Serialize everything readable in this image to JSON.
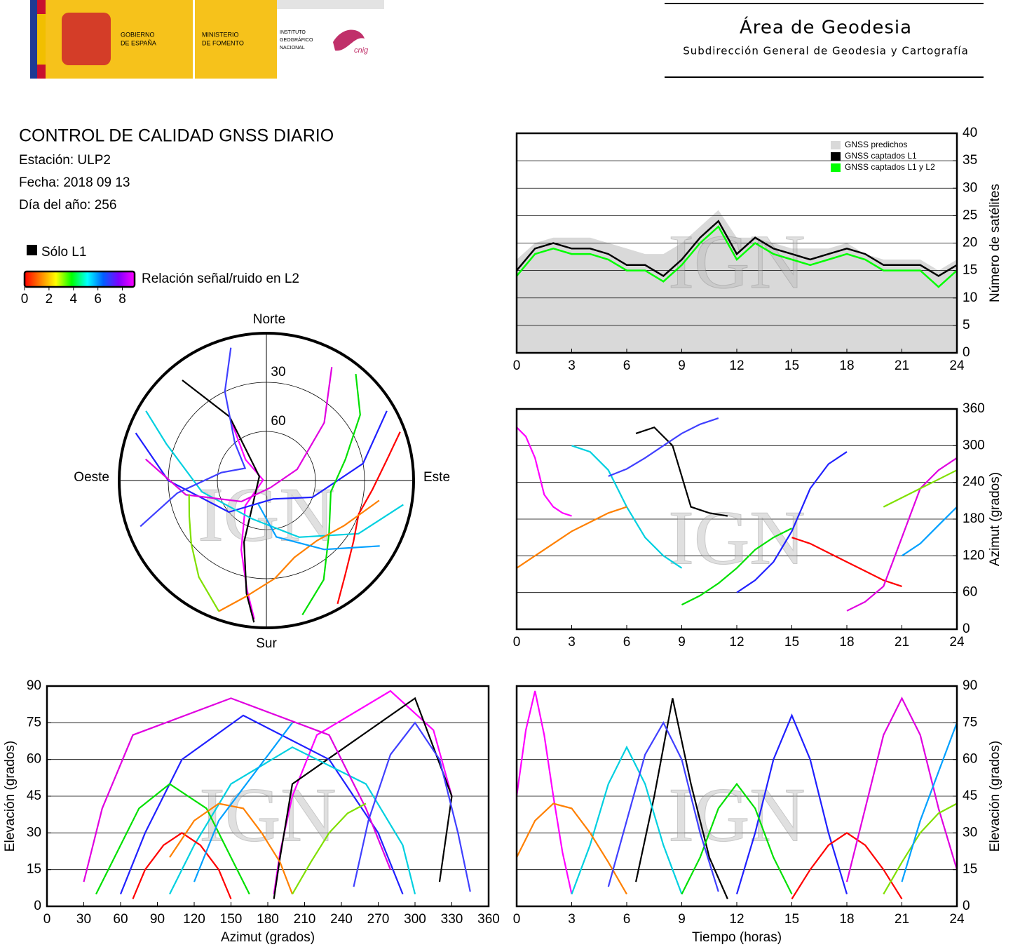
{
  "header": {
    "gov": [
      "GOBIERNO",
      "DE ESPAÑA"
    ],
    "ministry": [
      "MINISTERIO",
      "DE FOMENTO"
    ],
    "institute": [
      "INSTITUTO",
      "GEOGRÁFICO",
      "NACIONAL"
    ],
    "cnig": "cnig",
    "area": "Área de Geodesia",
    "subdirection": "Subdirección General de Geodesia y Cartografía"
  },
  "report": {
    "title": "CONTROL DE CALIDAD GNSS DIARIO",
    "station": "Estación: ULP2",
    "date": "Fecha: 2018 09 13",
    "doy": "Día del año: 256",
    "l1_only": "Sólo L1",
    "l1_color": "#000000",
    "colorbar": {
      "label": "Relación señal/ruido en L2",
      "lim": [
        0,
        9
      ],
      "ticks": [
        0,
        2,
        4,
        6,
        8
      ],
      "colors": [
        "#ff0000",
        "#ff8000",
        "#ffff00",
        "#00ff00",
        "#00ffff",
        "#0060ff",
        "#8000ff",
        "#ff00ff"
      ]
    }
  },
  "watermark": "IGN",
  "tracks": [
    {
      "color": "#ff00ff",
      "time": [
        0,
        0.5,
        1,
        1.5,
        2,
        2.5,
        3
      ],
      "azimuth": [
        330,
        315,
        280,
        220,
        200,
        190,
        185
      ],
      "elevation": [
        45,
        72,
        88,
        70,
        45,
        22,
        5
      ]
    },
    {
      "color": "#000000",
      "time": [
        6.5,
        7.5,
        8.5,
        9.5,
        10.5,
        11.5
      ],
      "azimuth": [
        320,
        330,
        300,
        200,
        190,
        185
      ],
      "elevation": [
        10,
        45,
        85,
        50,
        20,
        3
      ]
    },
    {
      "color": "#2020ff",
      "time": [
        12,
        13,
        14,
        15,
        16,
        17,
        18
      ],
      "azimuth": [
        60,
        80,
        110,
        160,
        230,
        270,
        290
      ],
      "elevation": [
        5,
        30,
        60,
        78,
        60,
        30,
        5
      ]
    },
    {
      "color": "#00d0e0",
      "time": [
        3,
        4,
        5,
        6,
        7,
        8,
        9
      ],
      "azimuth": [
        300,
        290,
        260,
        200,
        150,
        120,
        100
      ],
      "elevation": [
        5,
        25,
        50,
        65,
        50,
        25,
        5
      ]
    },
    {
      "color": "#ff0000",
      "time": [
        15,
        16,
        17,
        18,
        19,
        20,
        21
      ],
      "azimuth": [
        150,
        140,
        125,
        110,
        95,
        80,
        70
      ],
      "elevation": [
        3,
        15,
        25,
        30,
        25,
        15,
        3
      ]
    },
    {
      "color": "#00e000",
      "time": [
        9,
        10,
        11,
        12,
        13,
        14,
        15
      ],
      "azimuth": [
        40,
        55,
        75,
        100,
        130,
        150,
        165
      ],
      "elevation": [
        5,
        20,
        40,
        50,
        40,
        20,
        5
      ]
    },
    {
      "color": "#e000e0",
      "time": [
        18,
        19,
        20,
        21,
        22,
        23,
        24
      ],
      "azimuth": [
        30,
        45,
        70,
        150,
        230,
        260,
        280
      ],
      "elevation": [
        10,
        40,
        70,
        85,
        70,
        40,
        15
      ]
    },
    {
      "color": "#ff8000",
      "time": [
        0,
        1,
        2,
        3,
        4,
        5,
        6
      ],
      "azimuth": [
        100,
        120,
        140,
        160,
        175,
        190,
        200
      ],
      "elevation": [
        20,
        35,
        42,
        40,
        30,
        18,
        5
      ]
    },
    {
      "color": "#80e000",
      "time": [
        20,
        21,
        22,
        23,
        24
      ],
      "azimuth": [
        200,
        215,
        230,
        245,
        260
      ],
      "elevation": [
        5,
        18,
        30,
        38,
        42
      ]
    },
    {
      "color": "#4040ff",
      "time": [
        5,
        6,
        7,
        8,
        9,
        10,
        11
      ],
      "azimuth": [
        250,
        262,
        280,
        300,
        320,
        335,
        345
      ],
      "elevation": [
        8,
        35,
        62,
        75,
        60,
        30,
        6
      ]
    },
    {
      "color": "#00a0ff",
      "time": [
        21,
        22,
        23,
        24
      ],
      "azimuth": [
        120,
        140,
        170,
        200
      ],
      "elevation": [
        10,
        35,
        55,
        75
      ]
    }
  ],
  "chart_data": [
    {
      "type": "line",
      "x": [
        0,
        1,
        2,
        3,
        4,
        5,
        6,
        7,
        8,
        9,
        10,
        11,
        12,
        13,
        14,
        15,
        16,
        17,
        18,
        19,
        20,
        21,
        22,
        23,
        24
      ],
      "series": [
        {
          "name": "GNSS predichos",
          "color": "#d9d9d9",
          "style": "area",
          "values": [
            17,
            20,
            21,
            21,
            21,
            20,
            19,
            18,
            18,
            20,
            23,
            26,
            21,
            21,
            20,
            19,
            19,
            19,
            20,
            18,
            17,
            17,
            17,
            15,
            17
          ]
        },
        {
          "name": "GNSS captados L1",
          "color": "#000000",
          "style": "line",
          "values": [
            15,
            19,
            20,
            19,
            19,
            18,
            16,
            16,
            14,
            17,
            21,
            24,
            18,
            21,
            19,
            18,
            17,
            18,
            19,
            18,
            16,
            16,
            16,
            14,
            16
          ]
        },
        {
          "name": "GNSS captados L1 y L2",
          "color": "#00ff00",
          "style": "line",
          "values": [
            14,
            18,
            19,
            18,
            18,
            17,
            15,
            15,
            13,
            16,
            20,
            23,
            17,
            20,
            18,
            17,
            16,
            17,
            18,
            17,
            15,
            15,
            15,
            12,
            15
          ]
        }
      ],
      "xlim": [
        0,
        24
      ],
      "xticks": [
        0,
        3,
        6,
        9,
        12,
        15,
        18,
        21,
        24
      ],
      "ylim": [
        0,
        40
      ],
      "yticks": [
        0,
        5,
        10,
        15,
        20,
        25,
        30,
        35,
        40
      ],
      "ylabel": "Número de satélites",
      "grid": true,
      "legend": "upper right"
    },
    {
      "type": "azimuth-time",
      "xlim": [
        0,
        24
      ],
      "xticks": [
        0,
        3,
        6,
        9,
        12,
        15,
        18,
        21,
        24
      ],
      "ylim": [
        0,
        360
      ],
      "yticks": [
        0,
        60,
        120,
        180,
        240,
        300,
        360
      ],
      "ylabel": "Azimut (grados)",
      "grid": true
    },
    {
      "type": "elevation-azimuth",
      "xlim": [
        0,
        360
      ],
      "xticks": [
        0,
        30,
        60,
        90,
        120,
        150,
        180,
        210,
        240,
        270,
        300,
        330,
        360
      ],
      "ylim": [
        0,
        90
      ],
      "yticks": [
        0,
        15,
        30,
        45,
        60,
        75,
        90
      ],
      "xlabel": "Azimut (grados)",
      "ylabel": "Elevación (grados)",
      "grid": true
    },
    {
      "type": "elevation-time",
      "xlim": [
        0,
        24
      ],
      "xticks": [
        0,
        3,
        6,
        9,
        12,
        15,
        18,
        21,
        24
      ],
      "ylim": [
        0,
        90
      ],
      "yticks": [
        0,
        15,
        30,
        45,
        60,
        75,
        90
      ],
      "xlabel": "Tiempo (horas)",
      "ylabel": "Elevación (grados)",
      "grid": true
    },
    {
      "type": "skyplot",
      "directions": {
        "north": "Norte",
        "south": "Sur",
        "east": "Este",
        "west": "Oeste"
      },
      "rlim": [
        90,
        0
      ],
      "rticks": [
        30,
        60
      ]
    }
  ]
}
